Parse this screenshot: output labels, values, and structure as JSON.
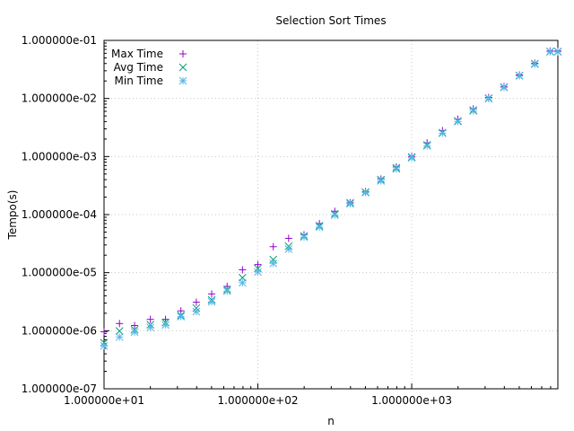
{
  "chart_data": {
    "type": "scatter",
    "title": "Selection Sort Times",
    "xlabel": "n",
    "ylabel": "Tempo(s)",
    "xscale": "log",
    "yscale": "log",
    "xlim": [
      10,
      8912.5
    ],
    "ylim": [
      1e-07,
      0.1
    ],
    "grid": true,
    "legend_position": "top-left",
    "x_ticks": [
      {
        "value": 10,
        "label": "1.000000e+01"
      },
      {
        "value": 100,
        "label": "1.000000e+02"
      },
      {
        "value": 1000,
        "label": "1.000000e+03"
      }
    ],
    "y_ticks": [
      {
        "value": 1e-07,
        "label": "1.000000e-07"
      },
      {
        "value": 1e-06,
        "label": "1.000000e-06"
      },
      {
        "value": 1e-05,
        "label": "1.000000e-05"
      },
      {
        "value": 0.0001,
        "label": "1.000000e-04"
      },
      {
        "value": 0.001,
        "label": "1.000000e-03"
      },
      {
        "value": 0.01,
        "label": "1.000000e-02"
      },
      {
        "value": 0.1,
        "label": "1.000000e-01"
      }
    ],
    "x": [
      10,
      12.6,
      15.8,
      20,
      25.1,
      31.6,
      39.8,
      50.1,
      63.1,
      79.4,
      100,
      125.9,
      158.5,
      199.5,
      251.2,
      316.2,
      398.1,
      501.2,
      631,
      794.3,
      1000,
      1258.9,
      1584.9,
      1995.3,
      2511.9,
      3162.3,
      3981.1,
      5011.9,
      6309.6,
      7943.3,
      8912.5
    ],
    "series": [
      {
        "name": "Max Time",
        "color": "#9400d3",
        "marker": "plus",
        "values": [
          9.6e-07,
          1.33e-06,
          1.23e-06,
          1.57e-06,
          1.57e-06,
          2.2e-06,
          3.1e-06,
          4.3e-06,
          5.8e-06,
          1.12e-05,
          1.38e-05,
          2.8e-05,
          3.9e-05,
          4.5e-05,
          7e-05,
          0.000114,
          0.00016,
          0.00025,
          0.00041,
          0.00066,
          0.001,
          0.00172,
          0.0028,
          0.0044,
          0.0066,
          0.0104,
          0.0161,
          0.0254,
          0.0405,
          0.0656,
          0.0656
        ]
      },
      {
        "name": "Avg Time",
        "color": "#009e73",
        "marker": "cross",
        "values": [
          6.2e-07,
          9.9e-07,
          1.04e-06,
          1.27e-06,
          1.38e-06,
          1.84e-06,
          2.46e-06,
          3.4e-06,
          5.1e-06,
          8.2e-06,
          1.18e-05,
          1.68e-05,
          2.85e-05,
          4.3e-05,
          6.4e-05,
          0.000103,
          0.00016,
          0.000245,
          0.0004,
          0.00064,
          0.00098,
          0.00158,
          0.00258,
          0.0041,
          0.0063,
          0.0101,
          0.0158,
          0.0248,
          0.0398,
          0.0645,
          0.0645
        ]
      },
      {
        "name": "Min Time",
        "color": "#56b4e9",
        "marker": "star",
        "values": [
          5.5e-07,
          7.8e-07,
          9.5e-07,
          1.14e-06,
          1.26e-06,
          1.75e-06,
          2.14e-06,
          3.15e-06,
          4.8e-06,
          6.7e-06,
          1.03e-05,
          1.45e-05,
          2.55e-05,
          4.1e-05,
          6.1e-05,
          9.8e-05,
          0.000153,
          0.000239,
          0.00038,
          0.00061,
          0.00095,
          0.00153,
          0.00252,
          0.004,
          0.0061,
          0.0099,
          0.0155,
          0.0245,
          0.039,
          0.0635,
          0.0635
        ]
      }
    ]
  }
}
